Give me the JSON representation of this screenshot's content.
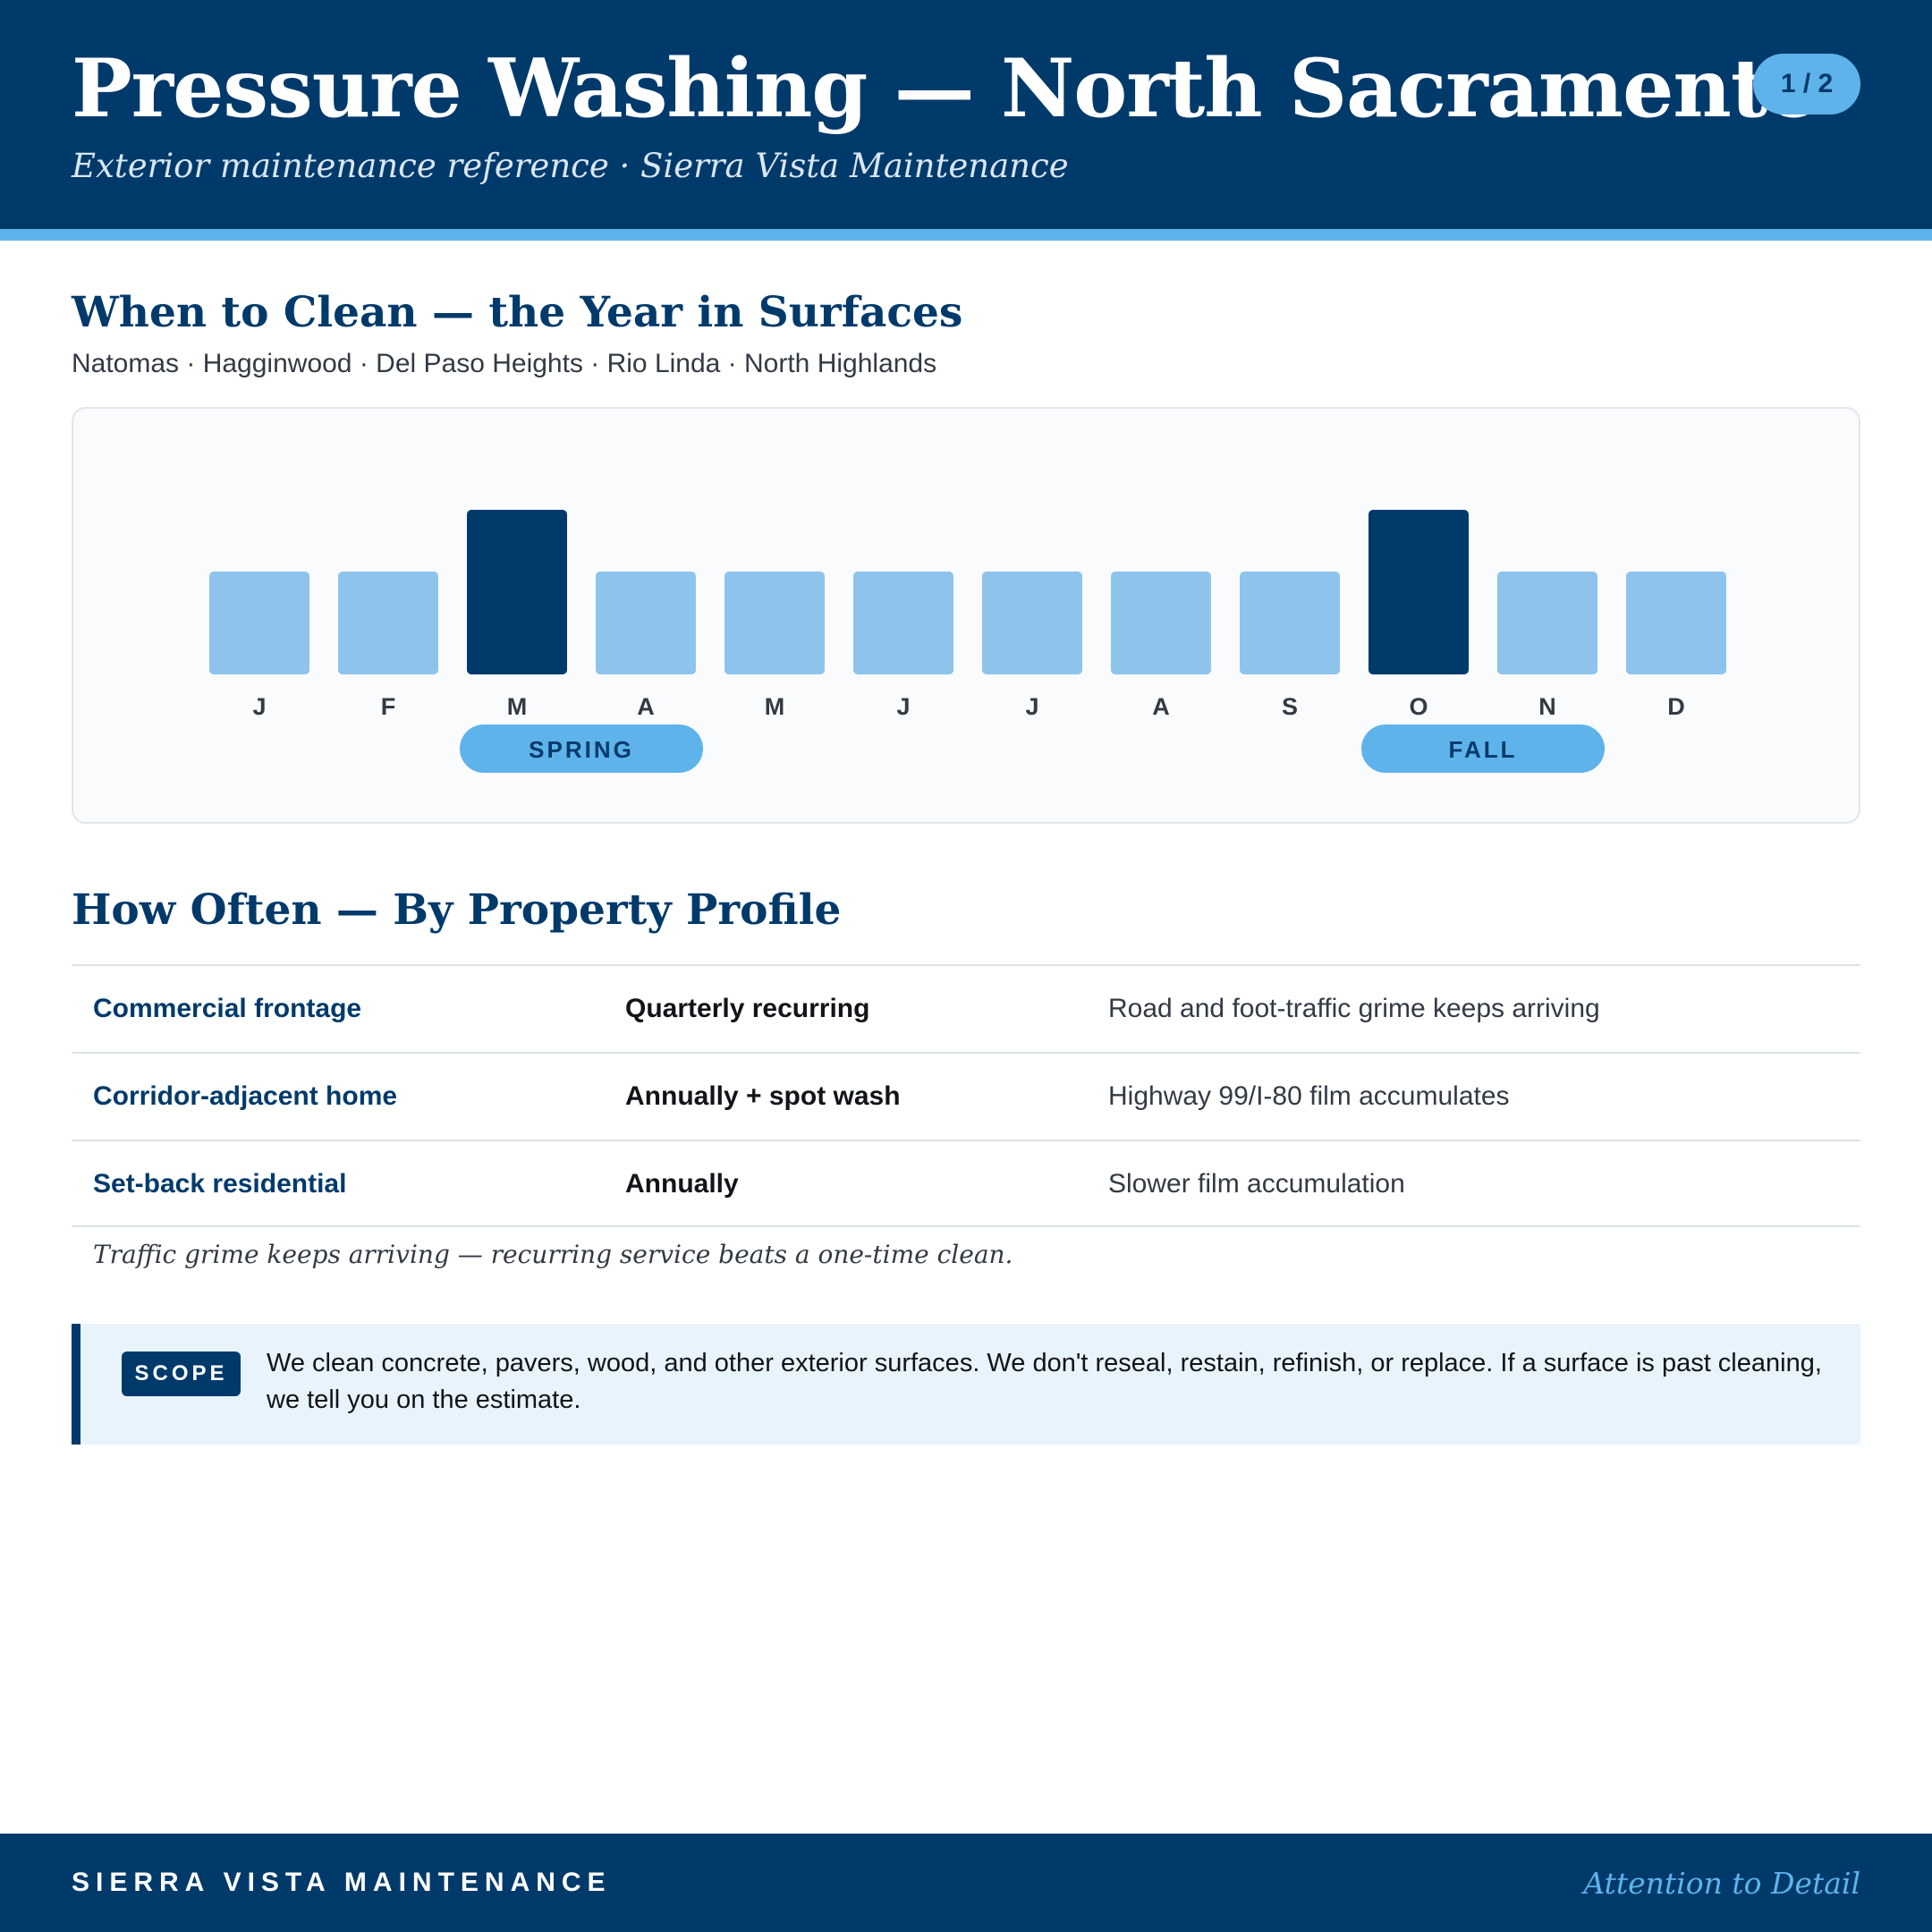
{
  "header": {
    "title": "Pressure Washing — North Sacramento",
    "subtitle": "Exterior maintenance reference · Sierra Vista Maintenance",
    "page_indicator": "1 / 2"
  },
  "timing": {
    "heading": "When to Clean — the Year in Surfaces",
    "areas": "Natomas · Hagginwood · Del Paso Heights · Rio Linda · North Highlands"
  },
  "chart_data": {
    "type": "bar",
    "categories": [
      "J",
      "F",
      "M",
      "A",
      "M",
      "J",
      "J",
      "A",
      "S",
      "O",
      "N",
      "D"
    ],
    "values": [
      1,
      1,
      1.6,
      1,
      1,
      1,
      1,
      1,
      1,
      1.6,
      1,
      1
    ],
    "highlight": [
      false,
      false,
      true,
      false,
      false,
      false,
      false,
      false,
      false,
      true,
      false,
      false
    ],
    "seasons": [
      {
        "label": "SPRING",
        "start": 2,
        "end": 3
      },
      {
        "label": "FALL",
        "start": 9,
        "end": 10
      }
    ],
    "colors": {
      "base": "#8EC4EC",
      "peak": "#003A6B",
      "season_pill": "#5FB3EB",
      "season_text": "#003A6B",
      "tick_text": "#333a44"
    },
    "title": "",
    "xlabel": "",
    "ylabel": ""
  },
  "frequency": {
    "heading": "How Often — By Property Profile",
    "rows": [
      {
        "profile": "Commercial frontage",
        "interval": "Quarterly recurring",
        "reason": "Road and foot-traffic grime keeps arriving"
      },
      {
        "profile": "Corridor-adjacent home",
        "interval": "Annually + spot wash",
        "reason": "Highway 99/I-80 film accumulates"
      },
      {
        "profile": "Set-back residential",
        "interval": "Annually",
        "reason": "Slower film accumulation"
      }
    ],
    "footnote": "Traffic grime keeps arriving — recurring service beats a one-time clean."
  },
  "scope": {
    "tag": "SCOPE",
    "text": "We clean concrete, pavers, wood, and other exterior surfaces. We don't reseal, restain, refinish, or replace. If a surface is past cleaning, we tell you on the estimate."
  },
  "footer": {
    "brand": "SIERRA VISTA MAINTENANCE",
    "tagline": "Attention to Detail"
  },
  "colors": {
    "primary": "#003A6B",
    "accent": "#5FB3EB",
    "scope_bg": "#E8F3FC"
  }
}
